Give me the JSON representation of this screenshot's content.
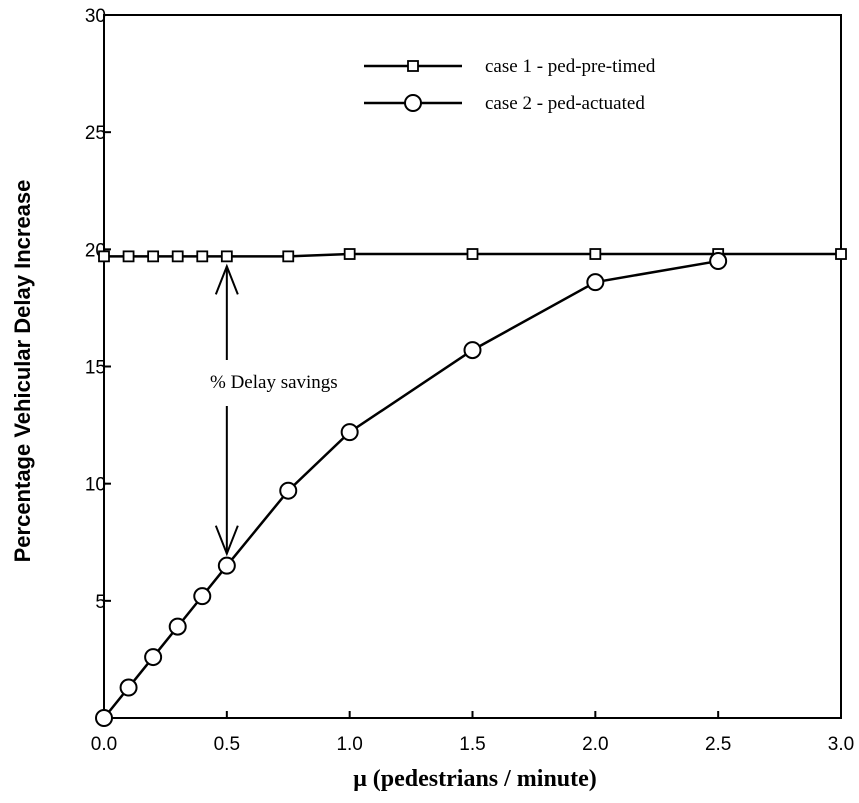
{
  "chart_data": {
    "type": "line",
    "title": "",
    "xlabel": "μ (pedestrians / minute)",
    "ylabel": "Percentage  Vehicular  Delay  Increase",
    "xlim": [
      0,
      3.0
    ],
    "ylim": [
      0,
      30
    ],
    "x_ticks": [
      "0.0",
      "0.5",
      "1.0",
      "1.5",
      "2.0",
      "2.5",
      "3.0"
    ],
    "y_ticks": [
      "0",
      "5",
      "10",
      "15",
      "20",
      "25",
      "30"
    ],
    "legend_position": "top-right",
    "grid": false,
    "series": [
      {
        "name": "case 1 - ped-pre-timed",
        "marker": "square",
        "x": [
          0.0,
          0.1,
          0.2,
          0.3,
          0.4,
          0.5,
          0.75,
          1.0,
          1.5,
          2.0,
          2.5,
          3.0
        ],
        "values": [
          19.7,
          19.7,
          19.7,
          19.7,
          19.7,
          19.7,
          19.7,
          19.8,
          19.8,
          19.8,
          19.8,
          19.8
        ]
      },
      {
        "name": "case 2 - ped-actuated",
        "marker": "circle",
        "x": [
          0.0,
          0.1,
          0.2,
          0.3,
          0.4,
          0.5,
          0.75,
          1.0,
          1.5,
          2.0,
          2.5
        ],
        "values": [
          0.0,
          1.3,
          2.6,
          3.9,
          5.2,
          6.5,
          9.7,
          12.2,
          15.7,
          18.6,
          19.5
        ]
      }
    ],
    "annotation": {
      "text": "% Delay savings",
      "x": 0.5,
      "y_from": 19.7,
      "y_to": 6.5
    }
  }
}
